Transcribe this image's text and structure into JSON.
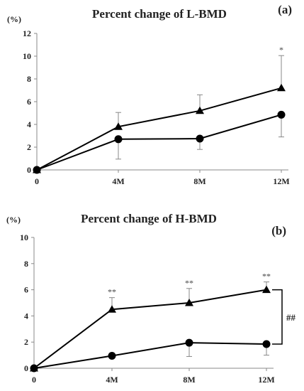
{
  "chart_data": [
    {
      "type": "line",
      "panel_label": "(a)",
      "title": "Percent change of L-BMD",
      "unit_label": "(%)",
      "categories": [
        "0",
        "4M",
        "8M",
        "12M"
      ],
      "yticks": [
        "0",
        "2",
        "4",
        "6",
        "8",
        "10",
        "12"
      ],
      "ylim": [
        0,
        12
      ],
      "grid": false,
      "series": [
        {
          "marker": "triangle",
          "values": [
            0,
            3.8,
            5.2,
            7.2
          ],
          "err_upper": [
            0,
            5.05,
            6.6,
            10.05
          ],
          "err_lower": [
            0,
            3.8,
            5.2,
            7.2
          ],
          "annotations": [
            "",
            "",
            "",
            "*"
          ]
        },
        {
          "marker": "circle",
          "values": [
            0,
            2.7,
            2.75,
            4.85
          ],
          "err_upper": [
            0,
            2.7,
            2.75,
            4.85
          ],
          "err_lower": [
            0,
            0.95,
            1.8,
            2.9
          ],
          "annotations": [
            "",
            "",
            "",
            ""
          ]
        }
      ],
      "group_annotation": ""
    },
    {
      "type": "line",
      "panel_label": "(b)",
      "title": "Percent change of H-BMD",
      "unit_label": "(%)",
      "categories": [
        "0",
        "4M",
        "8M",
        "12M"
      ],
      "yticks": [
        "0",
        "2",
        "4",
        "6",
        "8",
        "10"
      ],
      "ylim": [
        0,
        10
      ],
      "grid": false,
      "series": [
        {
          "marker": "triangle",
          "values": [
            0,
            4.5,
            5.0,
            6.0
          ],
          "err_upper": [
            0,
            5.4,
            6.1,
            6.6
          ],
          "err_lower": [
            0,
            4.5,
            5.0,
            6.0
          ],
          "annotations": [
            "",
            "**",
            "**",
            "**"
          ]
        },
        {
          "marker": "circle",
          "values": [
            0,
            0.95,
            1.95,
            1.85
          ],
          "err_upper": [
            0,
            0.95,
            1.95,
            1.85
          ],
          "err_lower": [
            0,
            0.95,
            0.9,
            1.0
          ],
          "annotations": [
            "",
            "",
            "",
            ""
          ]
        }
      ],
      "group_annotation": "##"
    }
  ]
}
